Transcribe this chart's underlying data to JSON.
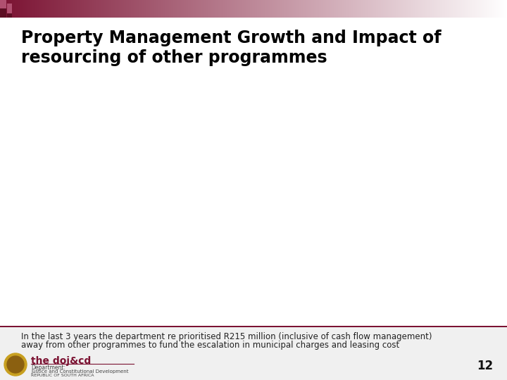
{
  "title_line1": "Property Management Growth and Impact of",
  "title_line2": "resourcing of other programmes",
  "footer_text_line1": "In the last 3 years the department re prioritised R215 million (inclusive of cash flow management)",
  "footer_text_line2": "away from other programmes to fund the escalation in municipal charges and leasing cost",
  "page_number": "12",
  "brand_text": "the doj&cd",
  "dept_text1": "Department:",
  "dept_text2": "Justice and Constitutional Development",
  "dept_text3": "REPUBLIC OF SOUTH AFRICA",
  "bg_color": "#ffffff",
  "title_color": "#000000",
  "header_color_left": "#7b1232",
  "footer_bar_color": "#7b1232",
  "footer_bg_color": "#f0f0f0",
  "title_fontsize": 17,
  "footer_fontsize": 8.5,
  "brand_fontsize": 10,
  "page_num_fontsize": 12
}
